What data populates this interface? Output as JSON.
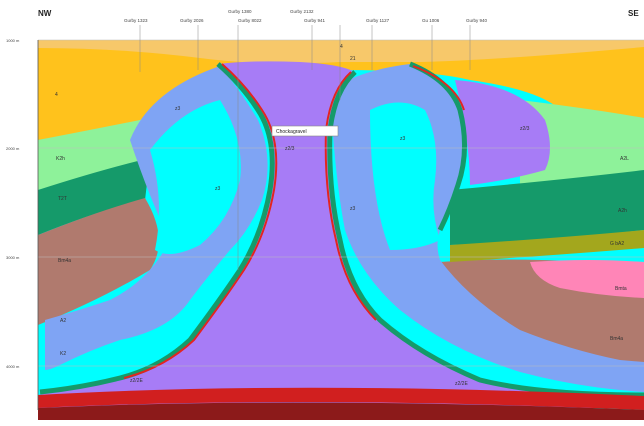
{
  "section": {
    "direction_left": "NW",
    "direction_right": "SE",
    "wells_top": [
      "Gurby 1380",
      "Gurby 2132"
    ],
    "wells_bottom": [
      "Gurby 1323",
      "Gurby 2026",
      "Gurby 8022",
      "Gurby 941",
      "Gurby 1127",
      "Gu 1006",
      "Gurby 940"
    ],
    "depths": [
      "1000 m",
      "2000 m",
      "3000 m",
      "4000 m"
    ],
    "callout": "Chockagravel"
  },
  "colors": {
    "salt": "#a77cf6",
    "blue_layer": "#7fa4f4",
    "cyan_layer": "#00ffff",
    "yellow": "#ffc21c",
    "pale_green": "#8ef29a",
    "dark_green": "#159a6a",
    "brown": "#b07a6e",
    "pink": "#ff85b7",
    "olive": "#a3a71d",
    "red_edge": "#e3251f",
    "base_red": "#b51b1f"
  }
}
